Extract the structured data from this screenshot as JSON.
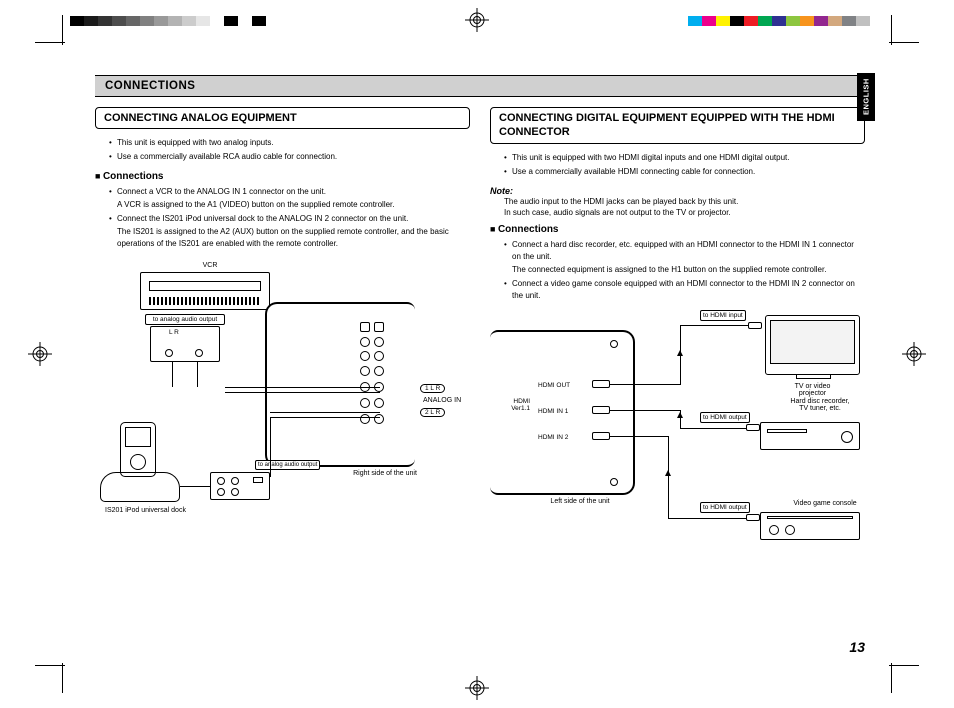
{
  "print_marks": {
    "left_bar_colors": [
      "#000000",
      "#1a1a1a",
      "#333333",
      "#4d4d4d",
      "#666666",
      "#808080",
      "#999999",
      "#b3b3b3",
      "#cccccc",
      "#e6e6e6",
      "#ffffff",
      "#000000",
      "#ffffff",
      "#000000"
    ],
    "right_bar_colors": [
      "#00aeef",
      "#ec008c",
      "#fff200",
      "#000000",
      "#ed1c24",
      "#00a651",
      "#2e3192",
      "#8dc63f",
      "#f7941d",
      "#92278f",
      "#d3a87e",
      "#808285",
      "#c0c0c0",
      "#ffffff"
    ]
  },
  "header": {
    "section": "CONNECTIONS",
    "language_tab": "ENGLISH"
  },
  "left_column": {
    "title": "CONNECTING ANALOG EQUIPMENT",
    "intro_bullets": [
      "This unit is equipped with two analog inputs.",
      "Use a commercially available RCA audio cable for connection."
    ],
    "sub_heading": "Connections",
    "connection_bullets": [
      {
        "text": "Connect a VCR to the ANALOG IN 1 connector on the unit.",
        "sub": "A VCR is assigned to the A1 (VIDEO) button on the supplied remote controller."
      },
      {
        "text": "Connect the IS201 iPod universal dock to the ANALOG IN 2 connector on the unit.",
        "sub": "The IS201 is assigned to the A2 (AUX) button on the supplied remote controller, and the basic operations of the IS201 are enabled with the remote controller."
      }
    ],
    "diagram": {
      "vcr_label": "VCR",
      "analog_out_label": "to analog audio output",
      "lr_label": "L   R",
      "analog_in_label": "ANALOG IN",
      "row1": "1  L  R",
      "row2": "2  L  R",
      "right_side_label": "Right side of the unit",
      "dock_label": "IS201 iPod universal dock",
      "dock_out_label": "to analog audio output"
    }
  },
  "right_column": {
    "title": "CONNECTING DIGITAL EQUIPMENT EQUIPPED WITH THE HDMI CONNECTOR",
    "intro_bullets": [
      "This unit is equipped with two HDMI digital inputs and one HDMI digital output.",
      "Use a commercially available HDMI connecting cable for connection."
    ],
    "note_label": "Note:",
    "note_text": "The audio input to the HDMI jacks can be played back by this unit.\nIn such case, audio signals are not output to the TV or projector.",
    "sub_heading": "Connections",
    "connection_bullets": [
      {
        "text": "Connect a hard disc recorder, etc. equipped with an HDMI connector to the HDMI IN 1 connector on the unit.",
        "sub": "The connected equipment is assigned to the H1 button on the supplied remote controller."
      },
      {
        "text": "Connect a video game console equipped with an HDMI connector to the HDMI IN 2 connector on the unit.",
        "sub": ""
      }
    ],
    "diagram": {
      "hdmi_ver": "HDMI\nVer1.1",
      "hdmi_out": "HDMI OUT",
      "hdmi_in1": "HDMI IN 1",
      "hdmi_in2": "HDMI IN 2",
      "left_side_label": "Left side of the unit",
      "to_hdmi_input": "to HDMI input",
      "to_hdmi_output1": "to HDMI output",
      "to_hdmi_output2": "to HDMI output",
      "tv_label": "TV or video\nprojector",
      "recorder_label": "Hard disc recorder,\nTV tuner, etc.",
      "console_label": "Video game console"
    }
  },
  "page_number": "13"
}
